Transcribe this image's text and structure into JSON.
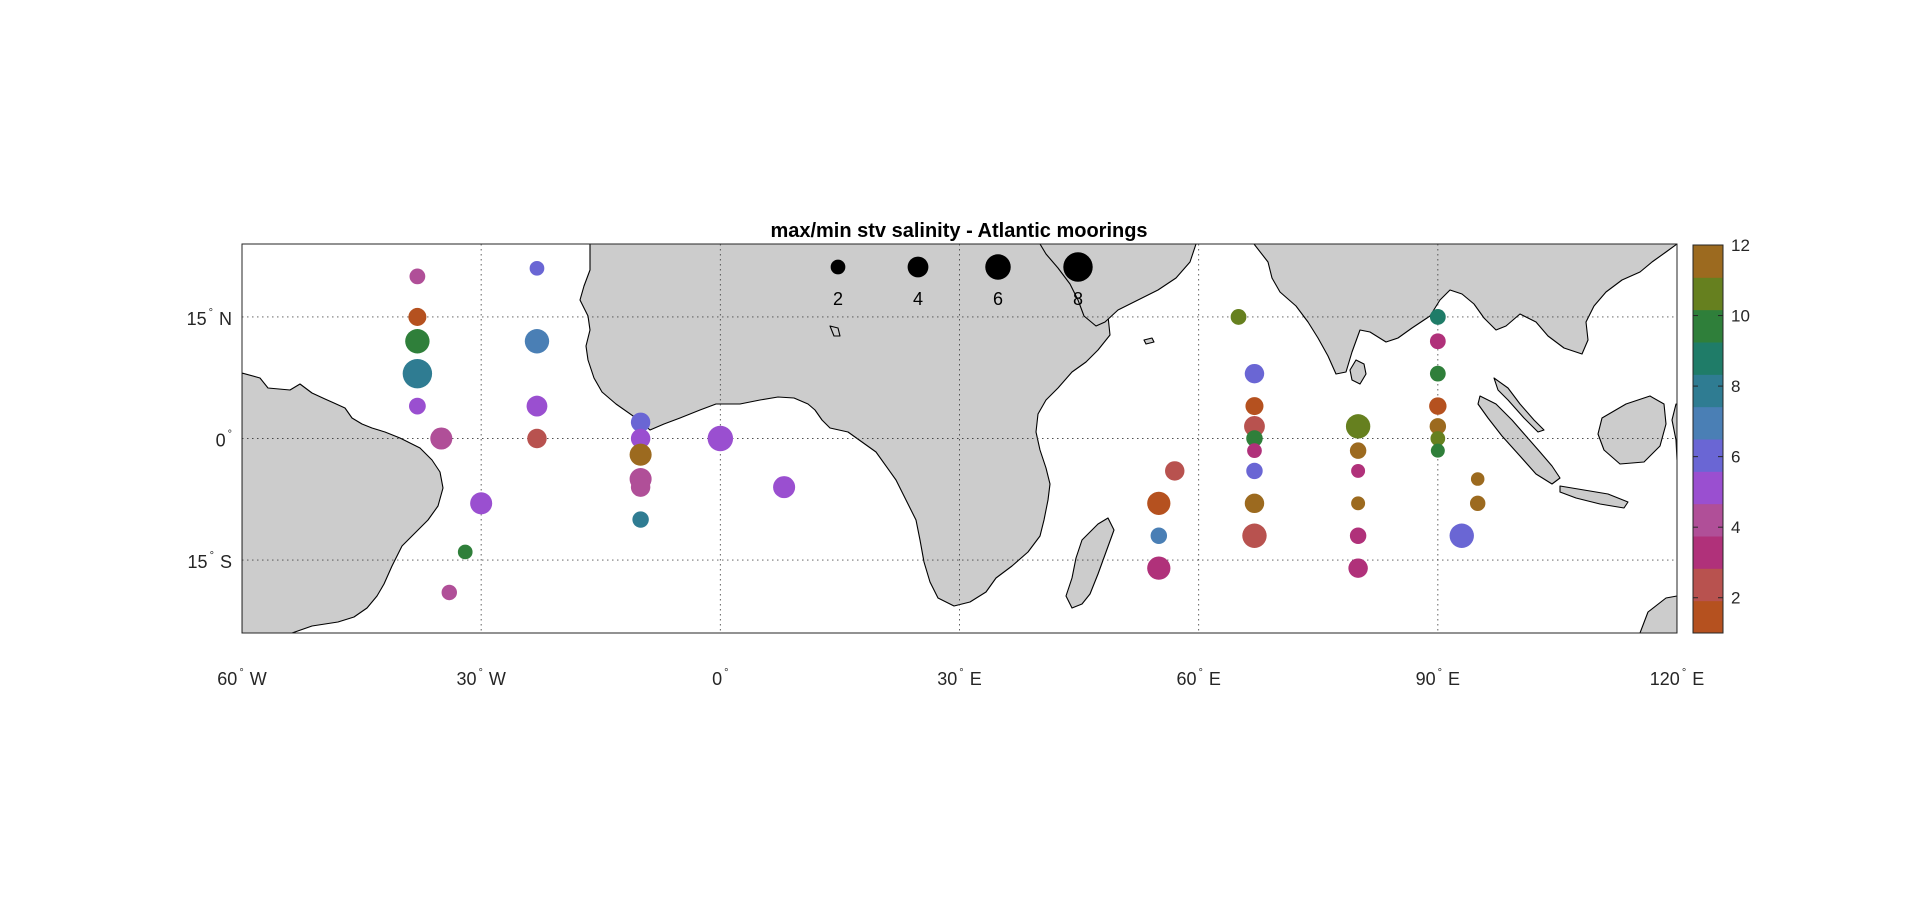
{
  "title": "max/min stv salinity - Atlantic moorings",
  "lon_ticks": [
    {
      "value": -60,
      "num": "60",
      "hemi": "W"
    },
    {
      "value": -30,
      "num": "30",
      "hemi": "W"
    },
    {
      "value": 0,
      "num": "0",
      "hemi": ""
    },
    {
      "value": 30,
      "num": "30",
      "hemi": "E"
    },
    {
      "value": 60,
      "num": "60",
      "hemi": "E"
    },
    {
      "value": 90,
      "num": "90",
      "hemi": "E"
    },
    {
      "value": 120,
      "num": "120",
      "hemi": "E"
    }
  ],
  "lat_ticks": [
    {
      "value": 15,
      "num": "15",
      "hemi": "N"
    },
    {
      "value": 0,
      "num": "0",
      "hemi": ""
    },
    {
      "value": -15,
      "num": "15",
      "hemi": "S"
    }
  ],
  "size_legend": [
    {
      "label": "2",
      "value": 2
    },
    {
      "label": "4",
      "value": 4
    },
    {
      "label": "6",
      "value": 6
    },
    {
      "label": "8",
      "value": 8
    }
  ],
  "colorbar": {
    "range": [
      1,
      12
    ],
    "tick_labels": [
      "2",
      "4",
      "6",
      "8",
      "10",
      "12"
    ],
    "tick_values": [
      2,
      4,
      6,
      8,
      10,
      12
    ],
    "colors": [
      "#b5511f",
      "#b8524f",
      "#b0317a",
      "#b04f98",
      "#9a4fd0",
      "#6a66d4",
      "#4a7fb5",
      "#2f7c92",
      "#1f7c68",
      "#2f7f3a",
      "#66801f",
      "#9c6a1f"
    ]
  },
  "chart_data": {
    "type": "scatter",
    "title": "max/min stv salinity - Atlantic moorings",
    "xlim": [
      -60,
      120
    ],
    "ylim": [
      -24,
      24
    ],
    "x_label_units": "degrees longitude",
    "y_label_units": "degrees latitude",
    "grid": true,
    "marker_size_meaning": "ratio value (legend 2, 4, 6, 8)",
    "marker_color_scale": [
      1,
      12
    ],
    "points": [
      {
        "lon": -38,
        "lat": 20,
        "size": 2.3,
        "color": 4
      },
      {
        "lon": -38,
        "lat": 15,
        "size": 3,
        "color": 1
      },
      {
        "lon": -38,
        "lat": 12,
        "size": 5.5,
        "color": 10
      },
      {
        "lon": -38,
        "lat": 8,
        "size": 8,
        "color": 8
      },
      {
        "lon": -38,
        "lat": 4,
        "size": 2.6,
        "color": 5
      },
      {
        "lon": -35,
        "lat": 0,
        "size": 4.5,
        "color": 4
      },
      {
        "lon": -30,
        "lat": -8,
        "size": 4.5,
        "color": 5
      },
      {
        "lon": -32,
        "lat": -14,
        "size": 2,
        "color": 10
      },
      {
        "lon": -34,
        "lat": -19,
        "size": 2.2,
        "color": 4
      },
      {
        "lon": -23,
        "lat": 21,
        "size": 2,
        "color": 6
      },
      {
        "lon": -23,
        "lat": 12,
        "size": 5.5,
        "color": 7
      },
      {
        "lon": -23,
        "lat": 4,
        "size": 4,
        "color": 5
      },
      {
        "lon": -23,
        "lat": 0,
        "size": 3.5,
        "color": 2
      },
      {
        "lon": -10,
        "lat": 2,
        "size": 3.5,
        "color": 6
      },
      {
        "lon": -10,
        "lat": 0,
        "size": 3.5,
        "color": 5
      },
      {
        "lon": -10,
        "lat": -2,
        "size": 4.5,
        "color": 12
      },
      {
        "lon": -10,
        "lat": -5,
        "size": 4.5,
        "color": 4
      },
      {
        "lon": -10,
        "lat": -6,
        "size": 3.5,
        "color": 4
      },
      {
        "lon": -10,
        "lat": -10,
        "size": 2.5,
        "color": 8
      },
      {
        "lon": 0,
        "lat": 0,
        "size": 6,
        "color": 5
      },
      {
        "lon": 8,
        "lat": -6,
        "size": 4.5,
        "color": 5
      },
      {
        "lon": 55,
        "lat": -8,
        "size": 5,
        "color": 1
      },
      {
        "lon": 57,
        "lat": -4,
        "size": 3.5,
        "color": 2
      },
      {
        "lon": 55,
        "lat": -12,
        "size": 2.5,
        "color": 7
      },
      {
        "lon": 55,
        "lat": -16,
        "size": 5,
        "color": 3
      },
      {
        "lon": 65,
        "lat": 15,
        "size": 2.3,
        "color": 11
      },
      {
        "lon": 67,
        "lat": 8,
        "size": 3.5,
        "color": 6
      },
      {
        "lon": 67,
        "lat": 4,
        "size": 3,
        "color": 1
      },
      {
        "lon": 67,
        "lat": 1.5,
        "size": 4,
        "color": 2
      },
      {
        "lon": 67,
        "lat": 0,
        "size": 2.5,
        "color": 10
      },
      {
        "lon": 67,
        "lat": -1.5,
        "size": 2,
        "color": 3
      },
      {
        "lon": 67,
        "lat": -4,
        "size": 2.5,
        "color": 6
      },
      {
        "lon": 67,
        "lat": -8,
        "size": 3.5,
        "color": 12
      },
      {
        "lon": 67,
        "lat": -12,
        "size": 5.5,
        "color": 2
      },
      {
        "lon": 80,
        "lat": 1.5,
        "size": 5.5,
        "color": 11
      },
      {
        "lon": 80,
        "lat": -1.5,
        "size": 2.5,
        "color": 12
      },
      {
        "lon": 80,
        "lat": -4,
        "size": 1.8,
        "color": 3
      },
      {
        "lon": 80,
        "lat": -8,
        "size": 1.8,
        "color": 12
      },
      {
        "lon": 80,
        "lat": -12,
        "size": 2.5,
        "color": 3
      },
      {
        "lon": 80,
        "lat": -16,
        "size": 3.5,
        "color": 3
      },
      {
        "lon": 90,
        "lat": 15,
        "size": 2.3,
        "color": 9
      },
      {
        "lon": 90,
        "lat": 12,
        "size": 2.3,
        "color": 3
      },
      {
        "lon": 90,
        "lat": 8,
        "size": 2.3,
        "color": 10
      },
      {
        "lon": 90,
        "lat": 4,
        "size": 2.8,
        "color": 1
      },
      {
        "lon": 90,
        "lat": 1.5,
        "size": 2.5,
        "color": 12
      },
      {
        "lon": 90,
        "lat": 0,
        "size": 2,
        "color": 11
      },
      {
        "lon": 90,
        "lat": -1.5,
        "size": 1.8,
        "color": 10
      },
      {
        "lon": 95,
        "lat": -5,
        "size": 1.7,
        "color": 12
      },
      {
        "lon": 95,
        "lat": -8,
        "size": 2.2,
        "color": 12
      },
      {
        "lon": 93,
        "lat": -12,
        "size": 5.5,
        "color": 6
      }
    ]
  }
}
